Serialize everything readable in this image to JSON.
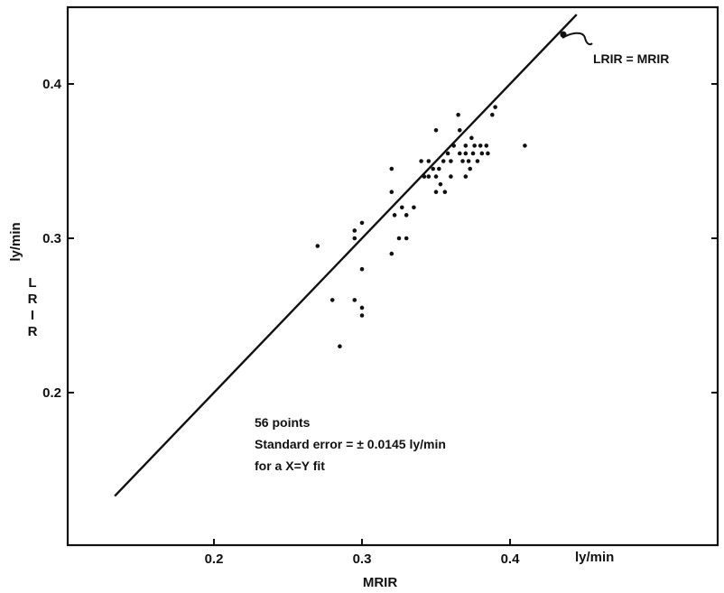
{
  "chart_data": {
    "type": "scatter",
    "x_unit_label": "ly/min",
    "xlabel": "MRIR",
    "ylabel_unit": "ly/min",
    "ylabel": "LRIR",
    "xlim": [
      0.1,
      0.48
    ],
    "ylim": [
      0.1,
      0.45
    ],
    "x_ticks": [
      {
        "value": 0.2,
        "label": "0.2"
      },
      {
        "value": 0.3,
        "label": "0.3"
      },
      {
        "value": 0.4,
        "label": "0.4"
      }
    ],
    "y_ticks": [
      {
        "value": 0.2,
        "label": "0.2"
      },
      {
        "value": 0.3,
        "label": "0.3"
      },
      {
        "value": 0.4,
        "label": "0.4"
      }
    ],
    "reference_line": {
      "label": "LRIR = MRIR",
      "from": [
        0.133,
        0.133
      ],
      "to": [
        0.445,
        0.445
      ]
    },
    "annotation_lines": [
      "56 points",
      "Standard error = ± 0.0145 ly/min",
      "for a X=Y fit"
    ],
    "points": [
      [
        0.27,
        0.295
      ],
      [
        0.28,
        0.26
      ],
      [
        0.285,
        0.23
      ],
      [
        0.295,
        0.3
      ],
      [
        0.295,
        0.305
      ],
      [
        0.295,
        0.26
      ],
      [
        0.3,
        0.31
      ],
      [
        0.3,
        0.28
      ],
      [
        0.3,
        0.255
      ],
      [
        0.3,
        0.25
      ],
      [
        0.32,
        0.345
      ],
      [
        0.32,
        0.33
      ],
      [
        0.32,
        0.29
      ],
      [
        0.322,
        0.315
      ],
      [
        0.325,
        0.3
      ],
      [
        0.327,
        0.32
      ],
      [
        0.33,
        0.3
      ],
      [
        0.33,
        0.315
      ],
      [
        0.335,
        0.32
      ],
      [
        0.34,
        0.35
      ],
      [
        0.342,
        0.34
      ],
      [
        0.345,
        0.35
      ],
      [
        0.345,
        0.34
      ],
      [
        0.348,
        0.345
      ],
      [
        0.35,
        0.34
      ],
      [
        0.35,
        0.33
      ],
      [
        0.35,
        0.37
      ],
      [
        0.352,
        0.345
      ],
      [
        0.353,
        0.335
      ],
      [
        0.355,
        0.35
      ],
      [
        0.356,
        0.33
      ],
      [
        0.358,
        0.355
      ],
      [
        0.36,
        0.34
      ],
      [
        0.36,
        0.35
      ],
      [
        0.362,
        0.36
      ],
      [
        0.365,
        0.38
      ],
      [
        0.366,
        0.37
      ],
      [
        0.366,
        0.355
      ],
      [
        0.368,
        0.35
      ],
      [
        0.37,
        0.34
      ],
      [
        0.37,
        0.355
      ],
      [
        0.37,
        0.36
      ],
      [
        0.372,
        0.35
      ],
      [
        0.373,
        0.345
      ],
      [
        0.374,
        0.365
      ],
      [
        0.375,
        0.355
      ],
      [
        0.376,
        0.36
      ],
      [
        0.378,
        0.35
      ],
      [
        0.38,
        0.36
      ],
      [
        0.381,
        0.355
      ],
      [
        0.384,
        0.36
      ],
      [
        0.385,
        0.355
      ],
      [
        0.388,
        0.38
      ],
      [
        0.39,
        0.385
      ],
      [
        0.41,
        0.36
      ],
      [
        0.436,
        0.432
      ]
    ]
  }
}
